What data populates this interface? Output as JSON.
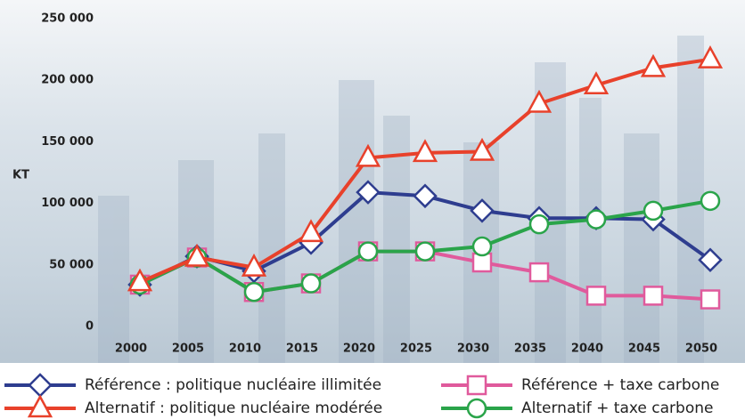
{
  "chart_data": {
    "type": "line",
    "ylabel": "KT",
    "categories": [
      "2000",
      "2005",
      "2010",
      "2015",
      "2020",
      "2025",
      "2030",
      "2035",
      "2040",
      "2045",
      "2050"
    ],
    "ylim": [
      0,
      250000
    ],
    "yticks": [
      {
        "value": 0,
        "label": "0"
      },
      {
        "value": 50000,
        "label": "50 000"
      },
      {
        "value": 100000,
        "label": "100 000"
      },
      {
        "value": 150000,
        "label": "150 000"
      },
      {
        "value": 200000,
        "label": "200 000"
      },
      {
        "value": 250000,
        "label": "250 000"
      }
    ],
    "series": [
      {
        "name": "Référence : politique nucléaire illimitée",
        "color": "#2e3d8f",
        "marker": "diamond",
        "values": [
          34000,
          57000,
          45000,
          68000,
          109000,
          106000,
          94000,
          88000,
          88000,
          87000,
          54000
        ]
      },
      {
        "name": "Alternatif : politique nucléaire modérée",
        "color": "#e8412b",
        "marker": "triangle",
        "values": [
          36000,
          56000,
          48000,
          76000,
          137000,
          141000,
          142000,
          181000,
          196000,
          210000,
          217000
        ]
      },
      {
        "name": "Référence + taxe carbone",
        "color": "#e05a9c",
        "marker": "square",
        "values": [
          34000,
          56000,
          28000,
          35000,
          61000,
          61000,
          52000,
          44000,
          25000,
          25000,
          22000
        ]
      },
      {
        "name": "Alternatif + taxe carbone",
        "color": "#2aa44a",
        "marker": "circle",
        "values": [
          34000,
          56000,
          28000,
          35000,
          61000,
          61000,
          65000,
          83000,
          87000,
          94000,
          102000
        ]
      }
    ]
  }
}
